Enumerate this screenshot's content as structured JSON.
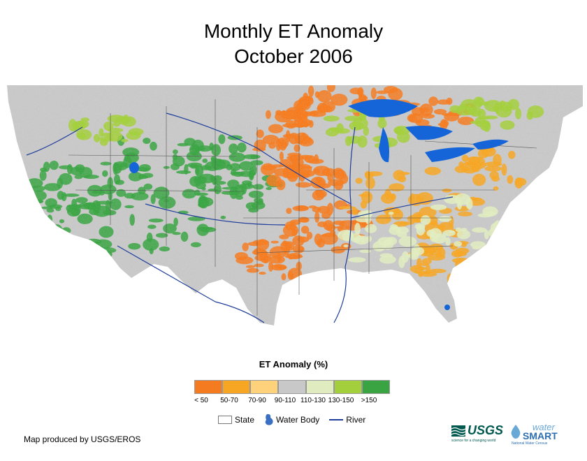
{
  "title": {
    "line1": "Monthly ET Anomaly",
    "line2": "October 2006"
  },
  "legend": {
    "title": "ET Anomaly (%)",
    "classes": [
      {
        "label": "< 50",
        "color": "#f47b20"
      },
      {
        "label": "50-70",
        "color": "#f6a623"
      },
      {
        "label": "70-90",
        "color": "#fdd27a"
      },
      {
        "label": "90-110",
        "color": "#c8c8c8"
      },
      {
        "label": "110-130",
        "color": "#e0ecbf"
      },
      {
        "label": "130-150",
        "color": "#a3cf3c"
      },
      {
        "label": ">150",
        "color": "#3aa443"
      }
    ],
    "overlays": {
      "state": "State",
      "water_body": "Water Body",
      "river": "River"
    }
  },
  "credit": "Map produced by USGS/EROS",
  "logos": {
    "usgs": "USGS",
    "usgs_tagline": "science for a changing world",
    "watersmart_top": "water",
    "watersmart_main": "SMART",
    "watersmart_sub": "National Water Census"
  },
  "colors": {
    "water": "#1565d8",
    "river": "#1f3d9a",
    "state_line": "#555555"
  }
}
